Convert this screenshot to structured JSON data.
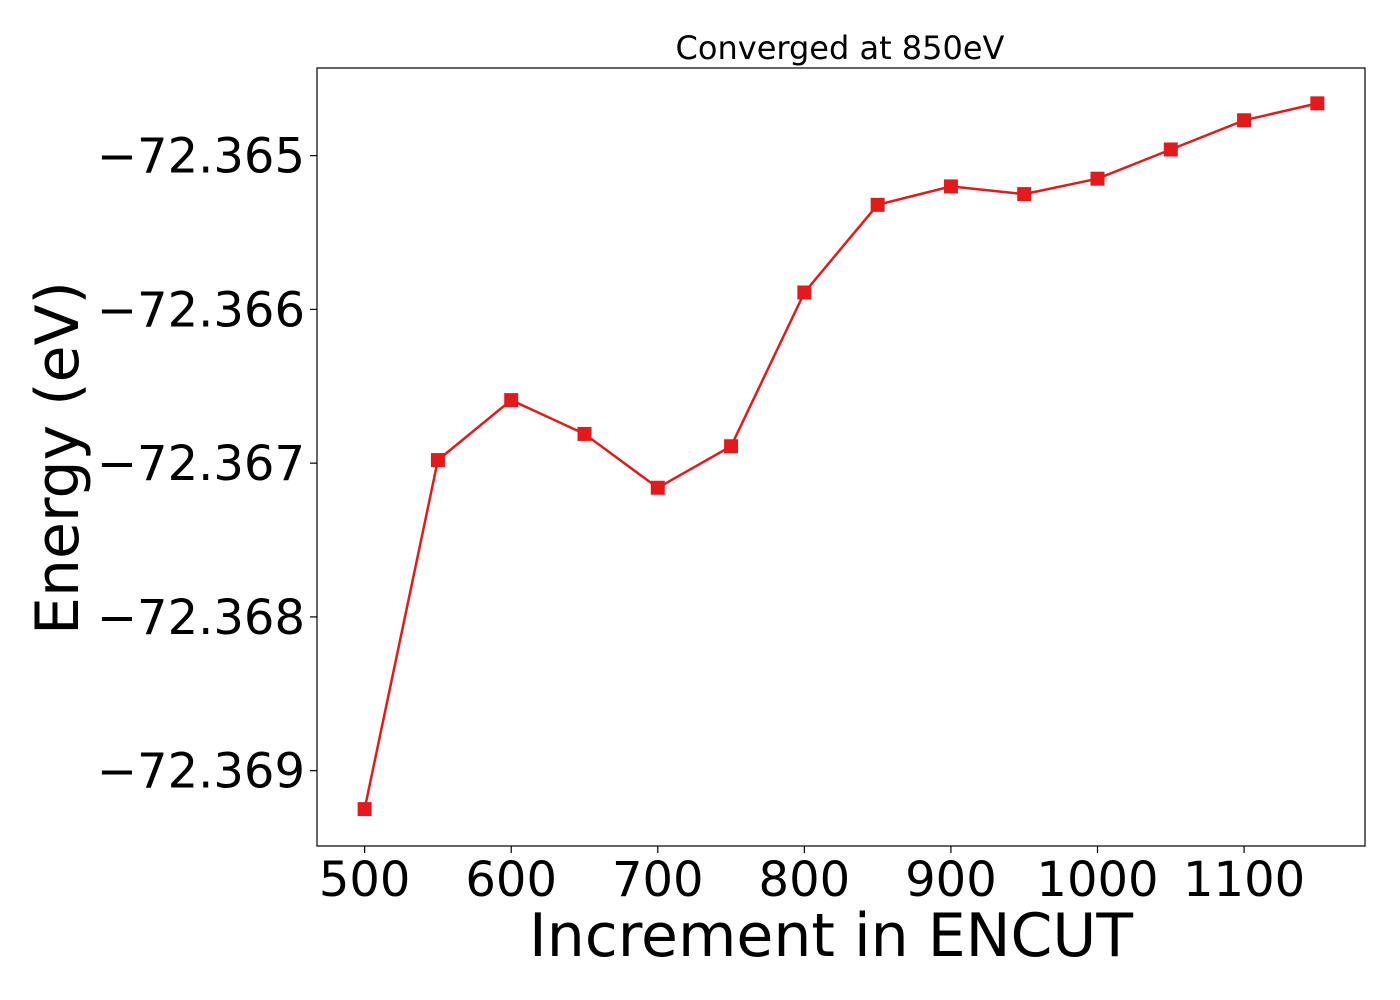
{
  "chart_data": {
    "type": "line",
    "title": "Converged at 850eV",
    "xlabel": "Increment in ENCUT",
    "ylabel": "Energy (eV)",
    "x": [
      500,
      550,
      600,
      650,
      700,
      750,
      800,
      850,
      900,
      950,
      1000,
      1050,
      1100,
      1150
    ],
    "series": [
      {
        "values": [
          -72.36925,
          -72.36698,
          -72.36659,
          -72.36681,
          -72.36716,
          -72.36689,
          -72.36589,
          -72.36532,
          -72.3652,
          -72.36525,
          -72.36515,
          -72.36496,
          -72.36477,
          -72.36466
        ],
        "color": "#e31a1c",
        "marker": "square"
      }
    ],
    "xticks": [
      500,
      600,
      700,
      800,
      900,
      1000,
      1100
    ],
    "xtick_labels": [
      "500",
      "600",
      "700",
      "800",
      "900",
      "1000",
      "1100"
    ],
    "yticks": [
      -72.369,
      -72.368,
      -72.367,
      -72.366,
      -72.365
    ],
    "ytick_labels": [
      "−72.369",
      "−72.368",
      "−72.367",
      "−72.366",
      "−72.365"
    ],
    "xlim": [
      467.5,
      1182.5
    ],
    "ylim": [
      -72.36949,
      -72.36443
    ],
    "grid": false,
    "legend": "none"
  }
}
